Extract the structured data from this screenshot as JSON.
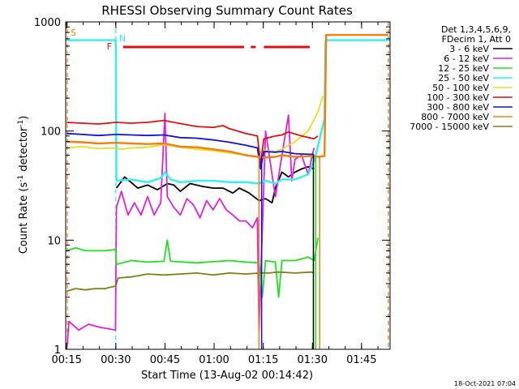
{
  "chart_data": {
    "type": "line",
    "title": "RHESSI Observing Summary Count Rates",
    "xlabel": "Start Time (13-Aug-02 00:14:42)",
    "ylabel_parts": [
      "Count Rate (s",
      "-1",
      " detector",
      "-1",
      ")"
    ],
    "y_scale": "log",
    "ylim": [
      1,
      1000
    ],
    "xlim_minutes": [
      0,
      99
    ],
    "x_ticks": [
      {
        "label": "00:15",
        "minutes": 0.3
      },
      {
        "label": "00:30",
        "minutes": 15.3
      },
      {
        "label": "00:45",
        "minutes": 30.3
      },
      {
        "label": "01:00",
        "minutes": 45.3
      },
      {
        "label": "01:15",
        "minutes": 60.3
      },
      {
        "label": "01:30",
        "minutes": 75.3
      },
      {
        "label": "01:45",
        "minutes": 90.3
      }
    ],
    "y_ticks": [
      {
        "label": "1",
        "value": 1
      },
      {
        "label": "10",
        "value": 10
      },
      {
        "label": "100",
        "value": 100
      },
      {
        "label": "1000",
        "value": 1000
      }
    ],
    "legend": {
      "position": "top-right",
      "header": [
        "Det 1,3,4,5,6,9,",
        "FDecim 1, Att 0"
      ],
      "entries": [
        {
          "label": "3 - 6 keV",
          "color": "#000000"
        },
        {
          "label": "6 - 12 keV",
          "color": "#e020e0"
        },
        {
          "label": "12 - 25 keV",
          "color": "#20e020"
        },
        {
          "label": "25 - 50 keV",
          "color": "#30f0f0"
        },
        {
          "label": "50 - 100 keV",
          "color": "#e0e020"
        },
        {
          "label": "100 - 300 keV",
          "color": "#e01010"
        },
        {
          "label": "300 - 800 keV",
          "color": "#1010e0"
        },
        {
          "label": "800 - 7000 keV",
          "color": "#f08010"
        },
        {
          "label": "7000 - 15000 keV",
          "color": "#808010"
        }
      ]
    },
    "flags": [
      {
        "label": "S",
        "color": "#f08010",
        "minutes": 0.5
      },
      {
        "label": "N",
        "color": "#30f0f0",
        "minutes": 15.3
      },
      {
        "label": "F",
        "color": "#e01010",
        "minutes": 15.5
      }
    ],
    "series": [
      {
        "name": "3 - 6 keV",
        "color": "#000000",
        "points": [
          [
            15.5,
            30
          ],
          [
            18,
            38
          ],
          [
            22,
            30
          ],
          [
            25,
            32
          ],
          [
            28,
            29
          ],
          [
            31,
            33
          ],
          [
            33,
            32
          ],
          [
            35,
            28
          ],
          [
            38,
            33
          ],
          [
            42,
            31
          ],
          [
            45,
            30
          ],
          [
            48,
            30
          ],
          [
            51,
            27
          ],
          [
            53,
            30
          ],
          [
            56,
            27
          ],
          [
            59,
            23
          ],
          [
            61,
            24
          ],
          [
            63,
            22
          ],
          [
            64,
            30
          ],
          [
            66,
            42
          ],
          [
            68,
            38
          ],
          [
            70,
            42
          ],
          [
            72,
            45
          ],
          [
            74,
            47
          ],
          [
            75.8,
            45
          ]
        ]
      },
      {
        "name": "6 - 12 keV",
        "color": "#e020e0",
        "points": [
          [
            0.5,
            1.1
          ],
          [
            1,
            1.8
          ],
          [
            4,
            1.5
          ],
          [
            7,
            1.7
          ],
          [
            10,
            1.6
          ],
          [
            15.2,
            1.5
          ],
          [
            15.5,
            20
          ],
          [
            17,
            28
          ],
          [
            19,
            17
          ],
          [
            21,
            22
          ],
          [
            23,
            17
          ],
          [
            25,
            25
          ],
          [
            27,
            17
          ],
          [
            29,
            22
          ],
          [
            30.3,
            145
          ],
          [
            31,
            25
          ],
          [
            33,
            20
          ],
          [
            35,
            17
          ],
          [
            37,
            24
          ],
          [
            39,
            21
          ],
          [
            41,
            16
          ],
          [
            43,
            23
          ],
          [
            45,
            19
          ],
          [
            47,
            24
          ],
          [
            49,
            19
          ],
          [
            51,
            17
          ],
          [
            53,
            15
          ],
          [
            55,
            15
          ],
          [
            57,
            13
          ],
          [
            58.5,
            16
          ],
          [
            59,
            1.5
          ],
          [
            61,
            100
          ],
          [
            64,
            25
          ],
          [
            66,
            60
          ],
          [
            68,
            140
          ],
          [
            69,
            35
          ],
          [
            70,
            55
          ],
          [
            72,
            60
          ],
          [
            74,
            40
          ],
          [
            75,
            55
          ],
          [
            75.8,
            70
          ]
        ]
      },
      {
        "name": "12 - 25 keV",
        "color": "#20e020",
        "points": [
          [
            0.3,
            8
          ],
          [
            3,
            8.5
          ],
          [
            6,
            8
          ],
          [
            9,
            8
          ],
          [
            12,
            8
          ],
          [
            15.3,
            8.2
          ],
          [
            15.5,
            6
          ],
          [
            20,
            6.5
          ],
          [
            25,
            6.3
          ],
          [
            30,
            6.4
          ],
          [
            31,
            10
          ],
          [
            32,
            6.4
          ],
          [
            40,
            6.2
          ],
          [
            50,
            6.5
          ],
          [
            55,
            6.3
          ],
          [
            59,
            6.2
          ],
          [
            60,
            3
          ],
          [
            61,
            6.5
          ],
          [
            64,
            6.3
          ],
          [
            65,
            3
          ],
          [
            66,
            6.5
          ],
          [
            70,
            6.5
          ],
          [
            74,
            7
          ],
          [
            75.8,
            6.5
          ],
          [
            77,
            10.5
          ]
        ]
      },
      {
        "name": "25 - 50 keV",
        "color": "#30f0f0",
        "points": [
          [
            0,
            680
          ],
          [
            15.3,
            680
          ],
          [
            15.5,
            35
          ],
          [
            20,
            36
          ],
          [
            25,
            34
          ],
          [
            29,
            37
          ],
          [
            30.3,
            42
          ],
          [
            32,
            36
          ],
          [
            35,
            34
          ],
          [
            40,
            35
          ],
          [
            45,
            35
          ],
          [
            50,
            34
          ],
          [
            55,
            34
          ],
          [
            59,
            33
          ],
          [
            61,
            35
          ],
          [
            64,
            33
          ],
          [
            66,
            36
          ],
          [
            70,
            36
          ],
          [
            74,
            40
          ],
          [
            76,
            55
          ],
          [
            79,
            130
          ],
          [
            79.3,
            680
          ],
          [
            99,
            680
          ]
        ]
      },
      {
        "name": "50 - 100 keV",
        "color": "#e0e020",
        "points": [
          [
            0.3,
            70
          ],
          [
            5,
            72
          ],
          [
            10,
            69
          ],
          [
            15.3,
            70
          ],
          [
            17,
            68
          ],
          [
            20,
            70
          ],
          [
            25,
            71
          ],
          [
            30,
            75
          ],
          [
            35,
            71
          ],
          [
            40,
            68
          ],
          [
            45,
            66
          ],
          [
            50,
            63
          ],
          [
            55,
            60
          ],
          [
            58.5,
            58
          ],
          [
            60,
            67
          ],
          [
            64,
            65
          ],
          [
            66,
            68
          ],
          [
            70,
            80
          ],
          [
            74,
            100
          ],
          [
            77,
            150
          ],
          [
            78.5,
            210
          ]
        ]
      },
      {
        "name": "100 - 300 keV",
        "color": "#e01010",
        "points": [
          [
            0.3,
            120
          ],
          [
            5,
            118
          ],
          [
            10,
            116
          ],
          [
            15.3,
            120
          ],
          [
            20,
            118
          ],
          [
            25,
            120
          ],
          [
            30,
            125
          ],
          [
            35,
            117
          ],
          [
            40,
            110
          ],
          [
            45,
            108
          ],
          [
            48,
            112
          ],
          [
            50,
            105
          ],
          [
            55,
            95
          ],
          [
            58.5,
            90
          ],
          [
            59.5,
            50
          ],
          [
            60.5,
            85
          ],
          [
            64,
            90
          ],
          [
            66,
            92
          ],
          [
            68,
            98
          ],
          [
            72,
            90
          ],
          [
            75.8,
            85
          ],
          [
            77,
            90
          ]
        ]
      },
      {
        "name": "300 - 800 keV",
        "color": "#1010e0",
        "points": [
          [
            0.3,
            95
          ],
          [
            5,
            93
          ],
          [
            10,
            91
          ],
          [
            15.3,
            93
          ],
          [
            20,
            92
          ],
          [
            25,
            91
          ],
          [
            30,
            92
          ],
          [
            35,
            87
          ],
          [
            40,
            86
          ],
          [
            45,
            83
          ],
          [
            50,
            79
          ],
          [
            55,
            74
          ],
          [
            58.5,
            70
          ],
          [
            59.5,
            45
          ],
          [
            60.5,
            65
          ],
          [
            64,
            64
          ],
          [
            66,
            65
          ],
          [
            70,
            62
          ],
          [
            75.8,
            61
          ]
        ]
      },
      {
        "name": "800 - 7000 keV",
        "color": "#f08010",
        "points": [
          [
            0.3,
            80
          ],
          [
            5,
            79
          ],
          [
            10,
            77
          ],
          [
            15.3,
            78
          ],
          [
            20,
            77
          ],
          [
            25,
            76
          ],
          [
            30,
            77
          ],
          [
            35,
            72
          ],
          [
            40,
            71
          ],
          [
            45,
            68
          ],
          [
            50,
            65
          ],
          [
            55,
            60
          ],
          [
            58.5,
            58
          ],
          [
            60.5,
            57
          ],
          [
            64,
            58
          ],
          [
            66,
            60
          ],
          [
            70,
            58
          ],
          [
            75,
            59
          ],
          [
            77,
            58
          ],
          [
            79,
            59
          ],
          [
            79.5,
            760
          ],
          [
            98.5,
            760
          ]
        ]
      },
      {
        "name": "7000 - 15000 keV",
        "color": "#808010",
        "points": [
          [
            0.3,
            3.4
          ],
          [
            3,
            3.6
          ],
          [
            6,
            3.5
          ],
          [
            9,
            3.6
          ],
          [
            12,
            3.6
          ],
          [
            15.3,
            3.8
          ],
          [
            16,
            4.5
          ],
          [
            20,
            4.6
          ],
          [
            25,
            4.9
          ],
          [
            30,
            4.8
          ],
          [
            35,
            4.9
          ],
          [
            40,
            5.0
          ],
          [
            45,
            4.8
          ],
          [
            50,
            5.0
          ],
          [
            55,
            4.9
          ],
          [
            59,
            5.0
          ],
          [
            62,
            5.0
          ],
          [
            65,
            5.1
          ],
          [
            70,
            5.0
          ],
          [
            75,
            5.1
          ],
          [
            75.8,
            5.0
          ]
        ]
      }
    ]
  },
  "footer": {
    "timestamp": "18-Oct-2021 07:04"
  }
}
